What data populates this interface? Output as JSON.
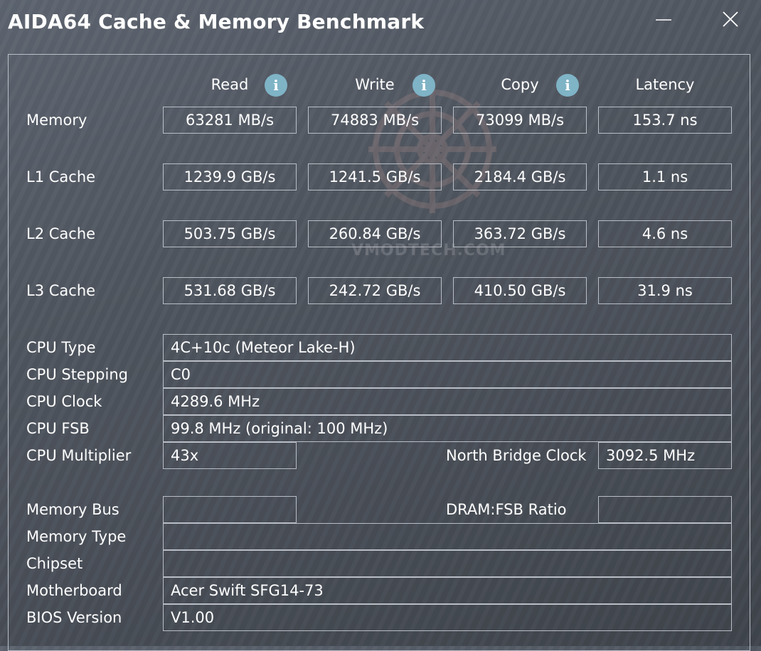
{
  "window": {
    "title": "AIDA64 Cache & Memory Benchmark",
    "minimize_icon": "minimize-icon",
    "close_icon": "close-icon"
  },
  "watermark": {
    "text": "VMODTECH.COM"
  },
  "columns": [
    "Read",
    "Write",
    "Copy",
    "Latency"
  ],
  "info_glyph": "i",
  "benchmarks": [
    {
      "label": "Memory",
      "read": "63281 MB/s",
      "write": "74883 MB/s",
      "copy": "73099 MB/s",
      "latency": "153.7 ns"
    },
    {
      "label": "L1 Cache",
      "read": "1239.9 GB/s",
      "write": "1241.5 GB/s",
      "copy": "2184.4 GB/s",
      "latency": "1.1 ns"
    },
    {
      "label": "L2 Cache",
      "read": "503.75 GB/s",
      "write": "260.84 GB/s",
      "copy": "363.72 GB/s",
      "latency": "4.6 ns"
    },
    {
      "label": "L3 Cache",
      "read": "531.68 GB/s",
      "write": "242.72 GB/s",
      "copy": "410.50 GB/s",
      "latency": "31.9 ns"
    }
  ],
  "cpu": {
    "type_label": "CPU Type",
    "type_value": "4C+10c   (Meteor Lake-H)",
    "stepping_label": "CPU Stepping",
    "stepping_value": "C0",
    "clock_label": "CPU Clock",
    "clock_value": "4289.6 MHz",
    "fsb_label": "CPU FSB",
    "fsb_value": "99.8 MHz  (original: 100 MHz)",
    "multiplier_label": "CPU Multiplier",
    "multiplier_value": "43x",
    "nb_clock_label": "North Bridge Clock",
    "nb_clock_value": "3092.5 MHz"
  },
  "system": {
    "memory_bus_label": "Memory Bus",
    "memory_bus_value": "",
    "dram_fsb_label": "DRAM:FSB Ratio",
    "dram_fsb_value": "",
    "memory_type_label": "Memory Type",
    "memory_type_value": "",
    "chipset_label": "Chipset",
    "chipset_value": "",
    "motherboard_label": "Motherboard",
    "motherboard_value": "Acer Swift SFG14-73",
    "bios_label": "BIOS Version",
    "bios_value": "V1.00"
  }
}
